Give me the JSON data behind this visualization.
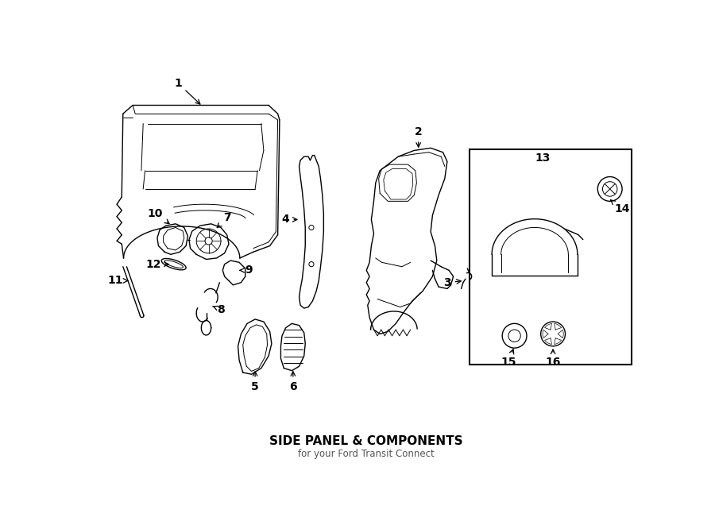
{
  "title": "SIDE PANEL & COMPONENTS",
  "subtitle": "for your Ford Transit Connect",
  "background_color": "#ffffff",
  "line_color": "#000000",
  "fig_width": 9.0,
  "fig_height": 6.61,
  "dpi": 100
}
